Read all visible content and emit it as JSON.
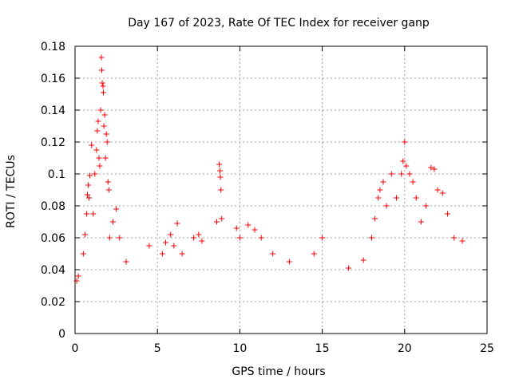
{
  "chart_data": {
    "type": "scatter",
    "title": "Day 167 of 2023, Rate Of TEC Index for receiver ganp",
    "xlabel": "GPS time / hours",
    "ylabel": "ROTI / TECUs",
    "xlim": [
      0,
      25
    ],
    "ylim": [
      0,
      0.18
    ],
    "x_ticks": [
      0,
      5,
      10,
      15,
      20,
      25
    ],
    "y_ticks": [
      0,
      0.02,
      0.04,
      0.06,
      0.08,
      0.1,
      0.12,
      0.14,
      0.16,
      0.18
    ],
    "x_tick_labels": [
      "0",
      "5",
      "10",
      "15",
      "20",
      "25"
    ],
    "y_tick_labels": [
      "0",
      "0.02",
      "0.04",
      "0.06",
      "0.08",
      "0.1",
      "0.12",
      "0.14",
      "0.16",
      "0.18"
    ],
    "grid": true,
    "marker": "+",
    "color": "#ff0000",
    "series": [
      {
        "name": "ROTI",
        "points": [
          [
            0.1,
            0.033
          ],
          [
            0.2,
            0.036
          ],
          [
            0.5,
            0.05
          ],
          [
            0.6,
            0.062
          ],
          [
            0.7,
            0.075
          ],
          [
            0.75,
            0.087
          ],
          [
            0.8,
            0.093
          ],
          [
            0.85,
            0.085
          ],
          [
            0.9,
            0.099
          ],
          [
            1.0,
            0.118
          ],
          [
            1.1,
            0.075
          ],
          [
            1.2,
            0.1
          ],
          [
            1.3,
            0.115
          ],
          [
            1.35,
            0.127
          ],
          [
            1.4,
            0.133
          ],
          [
            1.45,
            0.11
          ],
          [
            1.5,
            0.105
          ],
          [
            1.55,
            0.14
          ],
          [
            1.6,
            0.173
          ],
          [
            1.62,
            0.165
          ],
          [
            1.65,
            0.157
          ],
          [
            1.7,
            0.155
          ],
          [
            1.72,
            0.151
          ],
          [
            1.75,
            0.13
          ],
          [
            1.8,
            0.137
          ],
          [
            1.85,
            0.11
          ],
          [
            1.9,
            0.125
          ],
          [
            1.95,
            0.12
          ],
          [
            2.0,
            0.095
          ],
          [
            2.05,
            0.09
          ],
          [
            2.1,
            0.06
          ],
          [
            2.3,
            0.07
          ],
          [
            2.5,
            0.078
          ],
          [
            2.7,
            0.06
          ],
          [
            3.1,
            0.045
          ],
          [
            4.5,
            0.055
          ],
          [
            5.3,
            0.05
          ],
          [
            5.5,
            0.057
          ],
          [
            5.8,
            0.062
          ],
          [
            6.0,
            0.055
          ],
          [
            6.2,
            0.069
          ],
          [
            6.5,
            0.05
          ],
          [
            7.2,
            0.06
          ],
          [
            7.5,
            0.062
          ],
          [
            7.7,
            0.058
          ],
          [
            8.6,
            0.07
          ],
          [
            8.75,
            0.106
          ],
          [
            8.8,
            0.102
          ],
          [
            8.82,
            0.098
          ],
          [
            8.85,
            0.09
          ],
          [
            8.9,
            0.072
          ],
          [
            9.8,
            0.066
          ],
          [
            10.0,
            0.06
          ],
          [
            10.5,
            0.068
          ],
          [
            10.9,
            0.065
          ],
          [
            11.3,
            0.06
          ],
          [
            12.0,
            0.05
          ],
          [
            13.0,
            0.045
          ],
          [
            14.5,
            0.05
          ],
          [
            15.0,
            0.06
          ],
          [
            16.6,
            0.041
          ],
          [
            17.5,
            0.046
          ],
          [
            18.0,
            0.06
          ],
          [
            18.2,
            0.072
          ],
          [
            18.4,
            0.085
          ],
          [
            18.5,
            0.09
          ],
          [
            18.7,
            0.095
          ],
          [
            18.9,
            0.08
          ],
          [
            19.2,
            0.1
          ],
          [
            19.5,
            0.085
          ],
          [
            19.8,
            0.1
          ],
          [
            19.9,
            0.108
          ],
          [
            20.0,
            0.12
          ],
          [
            20.1,
            0.105
          ],
          [
            20.3,
            0.1
          ],
          [
            20.5,
            0.095
          ],
          [
            20.7,
            0.085
          ],
          [
            21.0,
            0.07
          ],
          [
            21.3,
            0.08
          ],
          [
            21.6,
            0.104
          ],
          [
            21.8,
            0.103
          ],
          [
            22.0,
            0.09
          ],
          [
            22.3,
            0.088
          ],
          [
            22.6,
            0.075
          ],
          [
            23.0,
            0.06
          ],
          [
            23.5,
            0.058
          ]
        ]
      }
    ]
  }
}
